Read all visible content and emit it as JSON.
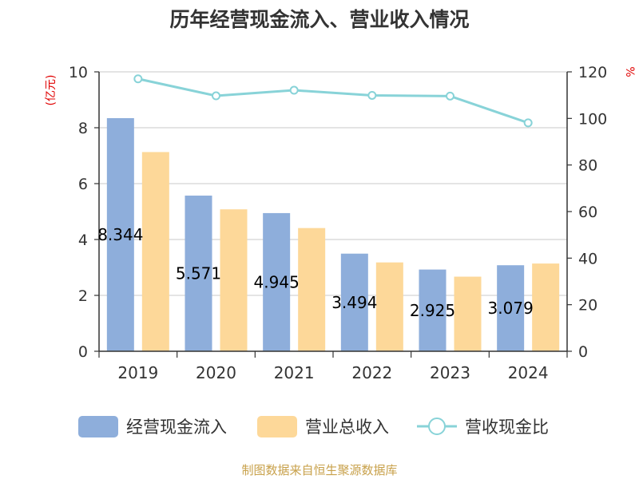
{
  "chart_data": {
    "type": "bar",
    "title": "历年经营现金流入、营业收入情况",
    "categories": [
      "2019",
      "2020",
      "2021",
      "2022",
      "2023",
      "2024"
    ],
    "series": [
      {
        "name": "经营现金流入",
        "type": "bar",
        "axis": "left",
        "color": "#8eaedb",
        "values": [
          8.344,
          5.571,
          4.945,
          3.494,
          2.925,
          3.079
        ],
        "labels": [
          "8.344",
          "5.571",
          "4.945",
          "3.494",
          "2.925",
          "3.079"
        ]
      },
      {
        "name": "营业总收入",
        "type": "bar",
        "axis": "left",
        "color": "#fdd899",
        "values": [
          7.13,
          5.08,
          4.41,
          3.18,
          2.67,
          3.14
        ]
      },
      {
        "name": "营收现金比",
        "type": "line",
        "axis": "right",
        "color": "#88d3d8",
        "values": [
          117.0,
          109.7,
          112.1,
          109.9,
          109.6,
          98.1
        ]
      }
    ],
    "yaxis_left": {
      "label": "(亿元)",
      "min": 0,
      "max": 10,
      "ticks": [
        0,
        2,
        4,
        6,
        8,
        10
      ]
    },
    "yaxis_right": {
      "label": "%",
      "min": 0,
      "max": 120,
      "ticks": [
        0,
        20,
        40,
        60,
        80,
        100,
        120
      ]
    },
    "grid": true,
    "legend": "bottom",
    "source": "制图数据来自恒生聚源数据库"
  }
}
